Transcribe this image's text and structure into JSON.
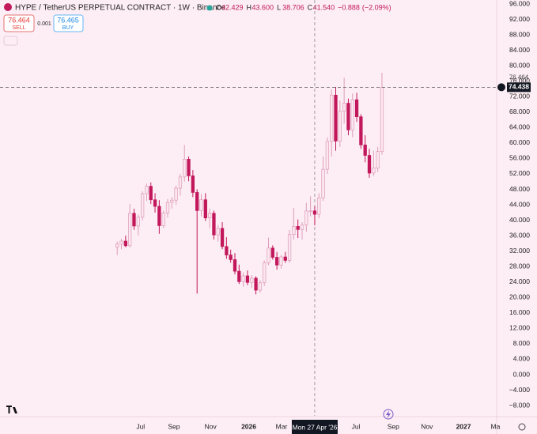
{
  "chart_data": {
    "type": "candlestick",
    "title": "HYPE / TetherUS PERPETUAL CONTRACT · 1W · Binance",
    "ohlc_legend": [
      {
        "name": "O",
        "value": 42.429
      },
      {
        "name": "H",
        "value": 43.6,
        "label": "43.600"
      },
      {
        "name": "L",
        "value": 38.706
      },
      {
        "name": "C",
        "value": 41.54,
        "label": "41.540"
      }
    ],
    "change": {
      "value": -0.888,
      "label": "−0.888"
    },
    "change_pct": {
      "value": -2.09,
      "label": "(−2.09%)"
    },
    "sell": {
      "price": 76.464,
      "label": "SELL"
    },
    "buy": {
      "price": 76.465,
      "label": "BUY"
    },
    "spread": 0.001,
    "crosshair": {
      "x": 47,
      "label": "Mon 27 Apr '26"
    },
    "x": [
      0,
      1,
      2,
      3,
      4,
      5,
      6,
      7,
      8,
      9,
      10,
      11,
      12,
      13,
      14,
      15,
      16,
      17,
      18,
      19,
      20,
      21,
      22,
      23,
      24,
      25,
      26,
      27,
      28,
      29,
      30,
      31,
      32,
      33,
      34,
      35,
      36,
      37,
      38,
      39,
      40,
      41,
      42,
      43,
      44,
      45,
      46,
      47,
      48,
      49,
      50,
      51,
      52,
      53,
      54,
      55,
      56,
      57,
      58,
      59,
      60,
      61,
      62,
      63
    ],
    "open": [
      33,
      33.8,
      34.6,
      33.4,
      41.8,
      38.5,
      40.8,
      46.9,
      48.8,
      45.3,
      43.6,
      38.6,
      41.9,
      44.6,
      45.2,
      48.3,
      51.2,
      55.8,
      51.5,
      47.2,
      42.5,
      45.3,
      40.6,
      41.8,
      36.2,
      37.9,
      33.2,
      31,
      29.8,
      26.8,
      24.1,
      25.6,
      23.9,
      25,
      21.9,
      23.8,
      29,
      32.8,
      30.4,
      28.4,
      30.5,
      29.6,
      36.3,
      38.4,
      37.6,
      38.8,
      42.4,
      42.429,
      41.54,
      45.8,
      53.2,
      60.4,
      72.4,
      60.5,
      68.2,
      70.3,
      63.4,
      71.2,
      66.8,
      59.5,
      56.8,
      52.2,
      53.5,
      57.8
    ],
    "high": [
      34.5,
      35.2,
      36,
      44.2,
      43,
      41.5,
      47.5,
      49.5,
      49.8,
      47,
      45.2,
      42.5,
      45.5,
      46,
      49,
      52,
      59.5,
      56.5,
      53,
      48,
      46.8,
      47,
      43,
      42.5,
      38.8,
      39.5,
      35.6,
      32.4,
      31.5,
      28.5,
      26.5,
      27,
      25.8,
      25.5,
      24.5,
      29.6,
      35.5,
      33.5,
      31.8,
      31,
      31.8,
      37.5,
      43.2,
      40.2,
      39.5,
      44.5,
      46.2,
      43.6,
      47,
      56.5,
      61.5,
      73.8,
      74.5,
      71,
      76.9,
      71.5,
      72.8,
      73,
      67.5,
      62,
      58.5,
      58,
      59,
      78.2
    ],
    "low": [
      31,
      32.5,
      33,
      33,
      37.5,
      36,
      40,
      45,
      44.2,
      42,
      36.5,
      38,
      40.7,
      43,
      44,
      46.4,
      50,
      50.1,
      46,
      21,
      41,
      39.8,
      38,
      35,
      34.5,
      32.5,
      30,
      29,
      26,
      23.5,
      22.8,
      23.2,
      22.5,
      20.8,
      21.2,
      23,
      28.4,
      29.8,
      27.2,
      27.5,
      29,
      29,
      35,
      35.4,
      35,
      37,
      41,
      38.706,
      40.5,
      45,
      52,
      56.5,
      58,
      59,
      65,
      62,
      61.5,
      65.5,
      58.5,
      55,
      51,
      51.5,
      52.5,
      57
    ],
    "close": [
      33.8,
      34.6,
      33.4,
      41.8,
      38.5,
      40.8,
      46.9,
      48.8,
      45.3,
      43.6,
      38.6,
      41.9,
      44.6,
      45.2,
      48.3,
      51.2,
      55.8,
      51.5,
      47.2,
      42.5,
      45.3,
      40.6,
      41.8,
      36.2,
      37.9,
      33.2,
      31,
      29.8,
      26.8,
      24.1,
      25.6,
      23.9,
      25,
      21.9,
      23.8,
      29,
      32.8,
      30.4,
      28.4,
      30.5,
      29.6,
      36.3,
      38.4,
      37.6,
      38.8,
      42.4,
      42.429,
      41.54,
      45.8,
      53.2,
      60.4,
      72.4,
      60.5,
      68.2,
      70.3,
      63.4,
      71.2,
      66.8,
      59.5,
      56.8,
      52.2,
      53.5,
      57.8,
      74.438
    ],
    "up_color": "#fce6ef",
    "up_border": "#dd9cb9",
    "down_color": "#c2185b",
    "background": "#fdeef5",
    "xlim": [
      -27.9,
      90.3
    ],
    "xticks": [
      {
        "value": 5.56,
        "label": "Jul"
      },
      {
        "value": 13.5,
        "label": "Sep"
      },
      {
        "value": 22.2,
        "label": "Nov"
      },
      {
        "value": 31.3,
        "label": "2026"
      },
      {
        "value": 39.1,
        "label": "Mar"
      },
      {
        "value": 56.8,
        "label": "Jul"
      },
      {
        "value": 65.7,
        "label": "Sep"
      },
      {
        "value": 73.7,
        "label": "Nov"
      },
      {
        "value": 82.4,
        "label": "2027"
      },
      {
        "value": 90,
        "label": "Ma"
      }
    ],
    "ylim": [
      -10.64,
      97.03
    ],
    "yticks": [
      {
        "value": 96,
        "label": "96.000"
      },
      {
        "value": 92,
        "label": "92.000"
      },
      {
        "value": 88,
        "label": "88.000"
      },
      {
        "value": 84,
        "label": "84.000"
      },
      {
        "value": 80,
        "label": "80.000"
      },
      {
        "value": 76,
        "label": "76.000"
      },
      {
        "value": 72,
        "label": "72.000"
      },
      {
        "value": 68,
        "label": "68.000"
      },
      {
        "value": 64,
        "label": "64.000"
      },
      {
        "value": 60,
        "label": "60.000"
      },
      {
        "value": 56,
        "label": "56.000"
      },
      {
        "value": 52,
        "label": "52.000"
      },
      {
        "value": 48,
        "label": "48.000"
      },
      {
        "value": 44,
        "label": "44.000"
      },
      {
        "value": 40,
        "label": "40.000"
      },
      {
        "value": 36,
        "label": "36.000"
      },
      {
        "value": 32,
        "label": "32.000"
      },
      {
        "value": 28,
        "label": "28.000"
      },
      {
        "value": 24,
        "label": "24.000"
      },
      {
        "value": 20,
        "label": "20.000"
      },
      {
        "value": 16,
        "label": "16.000"
      },
      {
        "value": 12,
        "label": "12.000"
      },
      {
        "value": 8,
        "label": "8.000"
      },
      {
        "value": 4,
        "label": "4.000"
      },
      {
        "value": 0,
        "label": "0.000"
      },
      {
        "value": -4,
        "label": "−4.000"
      },
      {
        "value": -8,
        "label": "−8.000"
      }
    ]
  }
}
